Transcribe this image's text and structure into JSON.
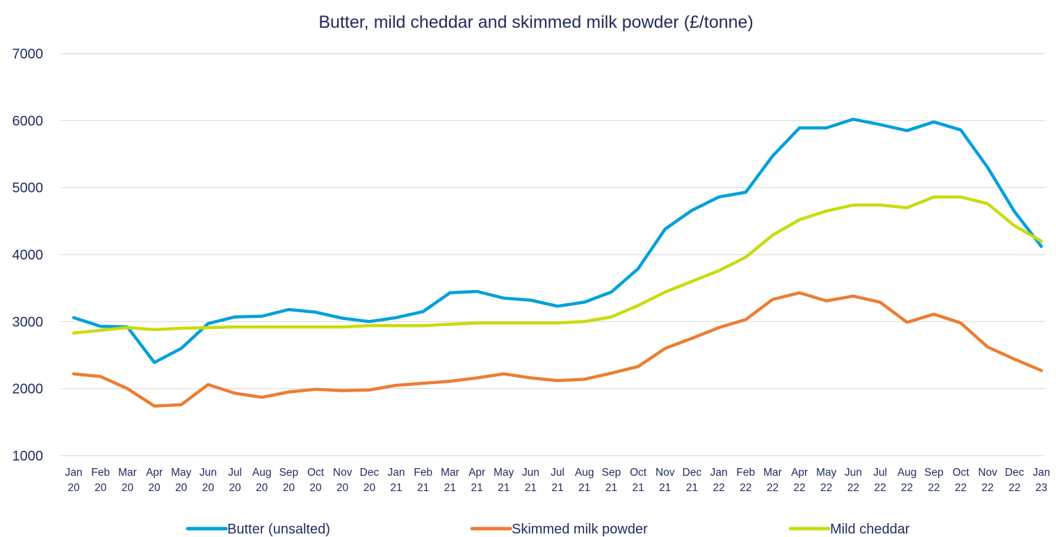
{
  "chart_data": {
    "type": "line",
    "title": "Butter, mild cheddar and skimmed milk powder (£/tonne)",
    "xlabel": "",
    "ylabel": "",
    "ylim": [
      1000,
      7000
    ],
    "yticks": [
      1000,
      2000,
      3000,
      4000,
      5000,
      6000,
      7000
    ],
    "grid": true,
    "legend_position": "bottom",
    "categories": [
      [
        "Jan",
        "20"
      ],
      [
        "Feb",
        "20"
      ],
      [
        "Mar",
        "20"
      ],
      [
        "Apr",
        "20"
      ],
      [
        "May",
        "20"
      ],
      [
        "Jun",
        "20"
      ],
      [
        "Jul",
        "20"
      ],
      [
        "Aug",
        "20"
      ],
      [
        "Sep",
        "20"
      ],
      [
        "Oct",
        "20"
      ],
      [
        "Nov",
        "20"
      ],
      [
        "Dec",
        "20"
      ],
      [
        "Jan",
        "21"
      ],
      [
        "Feb",
        "21"
      ],
      [
        "Mar",
        "21"
      ],
      [
        "Apr",
        "21"
      ],
      [
        "May",
        "21"
      ],
      [
        "Jun",
        "21"
      ],
      [
        "Jul",
        "21"
      ],
      [
        "Aug",
        "21"
      ],
      [
        "Sep",
        "21"
      ],
      [
        "Oct",
        "21"
      ],
      [
        "Nov",
        "21"
      ],
      [
        "Dec",
        "21"
      ],
      [
        "Jan",
        "22"
      ],
      [
        "Feb",
        "22"
      ],
      [
        "Mar",
        "22"
      ],
      [
        "Apr",
        "22"
      ],
      [
        "May",
        "22"
      ],
      [
        "Jun",
        "22"
      ],
      [
        "Jul",
        "22"
      ],
      [
        "Aug",
        "22"
      ],
      [
        "Sep",
        "22"
      ],
      [
        "Oct",
        "22"
      ],
      [
        "Nov",
        "22"
      ],
      [
        "Dec",
        "22"
      ],
      [
        "Jan",
        "23"
      ]
    ],
    "series": [
      {
        "name": "Butter (unsalted)",
        "color": "#00a0dc",
        "values": [
          3060,
          2930,
          2920,
          2390,
          2600,
          2970,
          3070,
          3080,
          3180,
          3140,
          3050,
          3000,
          3060,
          3150,
          3430,
          3450,
          3350,
          3320,
          3230,
          3290,
          3440,
          3790,
          4380,
          4660,
          4860,
          4930,
          5470,
          5890,
          5890,
          6020,
          5940,
          5850,
          5980,
          5860,
          5300,
          4640,
          4120
        ]
      },
      {
        "name": "Skimmed milk powder",
        "color": "#ed7d31",
        "values": [
          2220,
          2180,
          2000,
          1740,
          1760,
          2060,
          1930,
          1870,
          1950,
          1990,
          1970,
          1980,
          2050,
          2080,
          2110,
          2160,
          2220,
          2160,
          2120,
          2140,
          2230,
          2330,
          2600,
          2750,
          2910,
          3030,
          3330,
          3430,
          3310,
          3380,
          3290,
          2990,
          3110,
          2980,
          2620,
          2440,
          2270
        ]
      },
      {
        "name": "Mild cheddar",
        "color": "#c9dc0e",
        "values": [
          2830,
          2870,
          2910,
          2880,
          2900,
          2910,
          2920,
          2920,
          2920,
          2920,
          2920,
          2940,
          2940,
          2940,
          2960,
          2980,
          2980,
          2980,
          2980,
          3000,
          3070,
          3240,
          3440,
          3600,
          3760,
          3960,
          4290,
          4520,
          4650,
          4740,
          4740,
          4700,
          4860,
          4860,
          4760,
          4430,
          4200
        ]
      }
    ]
  }
}
